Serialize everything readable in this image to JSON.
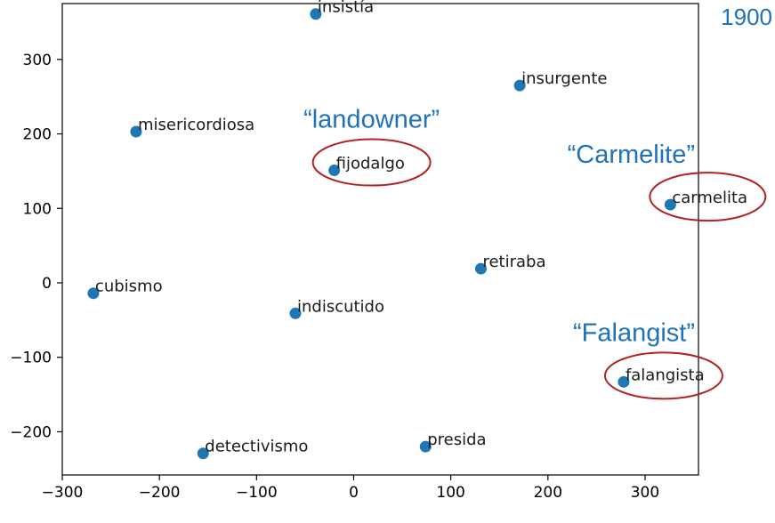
{
  "year_label": "1900",
  "chart_data": {
    "type": "scatter",
    "title": "",
    "xlabel": "",
    "ylabel": "",
    "xlim": [
      -300,
      355
    ],
    "ylim": [
      -258,
      375
    ],
    "xticks": [
      -300,
      -200,
      -100,
      0,
      100,
      200,
      300
    ],
    "yticks": [
      -200,
      -100,
      0,
      100,
      200,
      300
    ],
    "grid": false,
    "color": "#1f77b4",
    "points": [
      {
        "label": "insistía",
        "x": -39,
        "y": 361
      },
      {
        "label": "insurgente",
        "x": 171,
        "y": 265
      },
      {
        "label": "misericordiosa",
        "x": -224,
        "y": 203
      },
      {
        "label": "fijodalgo",
        "x": -20,
        "y": 151
      },
      {
        "label": "carmelita",
        "x": 326,
        "y": 105
      },
      {
        "label": "retiraba",
        "x": 131,
        "y": 19
      },
      {
        "label": "cubismo",
        "x": -268,
        "y": -14
      },
      {
        "label": "indiscutido",
        "x": -60,
        "y": -41
      },
      {
        "label": "falangista",
        "x": 278,
        "y": -133
      },
      {
        "label": "detectivismo",
        "x": -155,
        "y": -229
      },
      {
        "label": "presida",
        "x": 74,
        "y": -220
      }
    ],
    "annotations": [
      {
        "text": "“landowner”",
        "target": "fijodalgo",
        "color": "#1f72b8",
        "ring_color": "#b22222"
      },
      {
        "text": "“Carmelite”",
        "target": "carmelita",
        "color": "#1f72b8",
        "ring_color": "#b22222"
      },
      {
        "text": "“Falangist”",
        "target": "falangista",
        "color": "#1f72b8",
        "ring_color": "#b22222"
      }
    ]
  }
}
